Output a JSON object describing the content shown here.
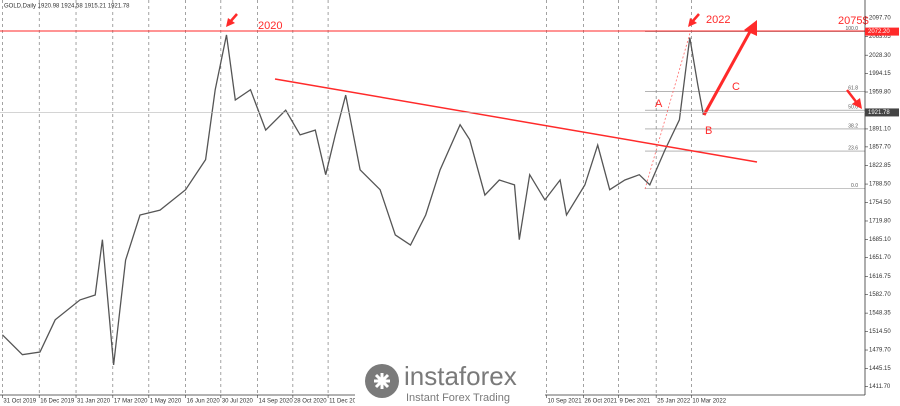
{
  "chart_data": {
    "type": "line",
    "title": "GOLD,Daily  1920.98 1924.58 1915.21 1921.78",
    "x": [
      "31 Oct 2019",
      "25 Nov 2019",
      "17 Dec 2019",
      "5 Jan 2020",
      "5 Feb 2020",
      "24 Feb 2020",
      "4 Mar 2020",
      "18 Mar 2020",
      "2 Apr 2020",
      "20 Apr 2020",
      "15 May 2020",
      "16 Jun 2020",
      "11 Jul 2020",
      "23 Jul 2020",
      "6 Aug 2020",
      "17 Aug 2020",
      "5 Sep 2020",
      "24 Sep 2020",
      "19 Oct 2020",
      "6 Nov 2020",
      "25 Nov 2020",
      "8 Dec 2020",
      "20 Dec 2020",
      "2 Jan 2021",
      "20 Jan 2021",
      "14 Feb 2021",
      "5 Mar 2021",
      "24 Mar 2021",
      "12 Apr 2021",
      "30 Apr 2021",
      "25 May 2021",
      "6 Jun 2021",
      "25 Jun 2021",
      "13 Jul 2021",
      "1 Aug 2021",
      "7 Aug 2021",
      "20 Aug 2021",
      "8 Sep 2021",
      "27 Sep 2021",
      "5 Oct 2021",
      "28 Oct 2021",
      "13 Nov 2021",
      "28 Nov 2021",
      "17 Dec 2021",
      "4 Jan 2022",
      "17 Jan 2022",
      "5 Feb 2022",
      "23 Feb 2022",
      "8 Mar 2022",
      "18 Mar 2022",
      "25 Mar 2022"
    ],
    "values": [
      1508,
      1471,
      1476,
      1536,
      1573,
      1582,
      1685,
      1452,
      1647,
      1731,
      1740,
      1778,
      1834,
      1964,
      2066,
      1945,
      1964,
      1889,
      1926,
      1880,
      1889,
      1806,
      1880,
      1954,
      1815,
      1778,
      1694,
      1675,
      1731,
      1815,
      1899,
      1871,
      1768,
      1796,
      1787,
      1685,
      1806,
      1759,
      1796,
      1731,
      1787,
      1861,
      1778,
      1796,
      1806,
      1787,
      1852,
      1908,
      2061,
      1973,
      1917
    ],
    "color": "#555555",
    "xlim": [
      "28 Oct 2019",
      "13 Oct 2022"
    ],
    "xticks": [
      "31 Oct 2019",
      "16 Dec 2019",
      "31 Jan 2020",
      "17 Mar 2020",
      "1 May 2020",
      "16 Jun 2020",
      "30 Jul 2020",
      "14 Sep 2020",
      "28 Oct 2020",
      "11 Dec 2020",
      "10 Sep 2021",
      "26 Oct 2021",
      "9 Dec 2021",
      "25 Jan 2022",
      "10 Mar 2022"
    ],
    "ylim": [
      1396,
      2131
    ],
    "yticks": [
      {
        "value": 2097.7,
        "label": "2097.70"
      },
      {
        "value": 2063.05,
        "label": "2063.05"
      },
      {
        "value": 2028.3,
        "label": "2028.30"
      },
      {
        "value": 1994.15,
        "label": "1994.15"
      },
      {
        "value": 1959.8,
        "label": "1959.80"
      },
      {
        "value": 1891.1,
        "label": "1891.10"
      },
      {
        "value": 1857.7,
        "label": "1857.70"
      },
      {
        "value": 1822.85,
        "label": "1822.85"
      },
      {
        "value": 1788.5,
        "label": "1788.50"
      },
      {
        "value": 1754.5,
        "label": "1754.50"
      },
      {
        "value": 1719.8,
        "label": "1719.80"
      },
      {
        "value": 1685.1,
        "label": "1685.10"
      },
      {
        "value": 1651.7,
        "label": "1651.70"
      },
      {
        "value": 1616.75,
        "label": "1616.75"
      },
      {
        "value": 1582.7,
        "label": "1582.70"
      },
      {
        "value": 1548.35,
        "label": "1548.35"
      },
      {
        "value": 1514.5,
        "label": "1514.50"
      },
      {
        "value": 1479.7,
        "label": "1479.70"
      },
      {
        "value": 1445.15,
        "label": "1445.15"
      },
      {
        "value": 1411.7,
        "label": "1411.70"
      }
    ],
    "grid": true,
    "fib_levels": [
      {
        "value": 2072.2,
        "label": "100.0"
      },
      {
        "value": 1961,
        "label": "61.8"
      },
      {
        "value": 1926,
        "label": "50.0"
      },
      {
        "value": 1891,
        "label": "38.2"
      },
      {
        "value": 1850,
        "label": "23.6"
      },
      {
        "value": 1780,
        "label": "0.0"
      }
    ],
    "price_markers": [
      {
        "value": 2072.2,
        "label": "2072.20",
        "color": "#ff2a2a"
      },
      {
        "value": 1921.78,
        "label": "1921.78",
        "color": "#444444"
      }
    ],
    "annotations": {
      "peak_2020": "2020",
      "peak_2022": "2022",
      "target": "2075$",
      "wave_a": "A",
      "wave_b": "B",
      "wave_c": "C"
    },
    "watermark": {
      "brand": "instaforex",
      "tagline": "Instant Forex Trading"
    }
  }
}
